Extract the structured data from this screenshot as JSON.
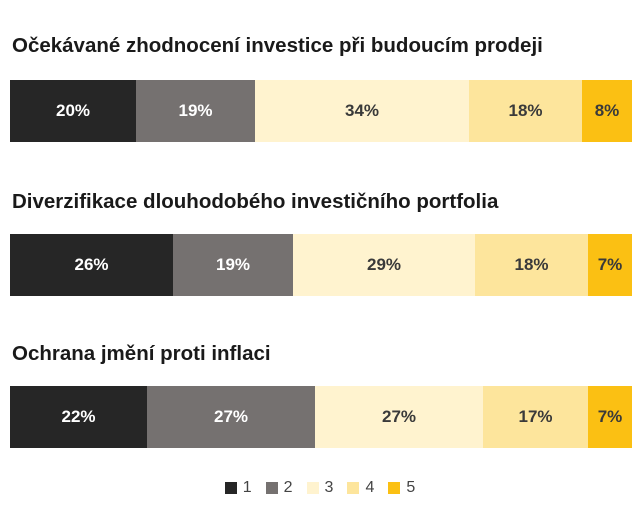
{
  "chart_data": {
    "type": "bar",
    "orientation": "horizontal-stacked-100",
    "groups": [
      {
        "title": "Očekávané zhodnocení investice při budoucím prodeji",
        "values": [
          20,
          19,
          34,
          18,
          8
        ],
        "labels": [
          "20%",
          "19%",
          "34%",
          "18%",
          "8%"
        ]
      },
      {
        "title": "Diverzifikace dlouhodobého investičního portfolia",
        "values": [
          26,
          19,
          29,
          18,
          7
        ],
        "labels": [
          "26%",
          "19%",
          "29%",
          "18%",
          "7%"
        ]
      },
      {
        "title": "Ochrana jmění proti inflaci",
        "values": [
          22,
          27,
          27,
          17,
          7
        ],
        "labels": [
          "22%",
          "27%",
          "27%",
          "17%",
          "7%"
        ]
      }
    ],
    "series": [
      {
        "name": "1",
        "color": "#262626",
        "label_color": "#ffffff"
      },
      {
        "name": "2",
        "color": "#757170",
        "label_color": "#ffffff"
      },
      {
        "name": "3",
        "color": "#fff3cf",
        "label_color": "#3a3a3a"
      },
      {
        "name": "4",
        "color": "#fde59c",
        "label_color": "#3a3a3a"
      },
      {
        "name": "5",
        "color": "#fbc013",
        "label_color": "#3a3a3a"
      }
    ],
    "legend_position": "bottom-center",
    "grid": false
  }
}
